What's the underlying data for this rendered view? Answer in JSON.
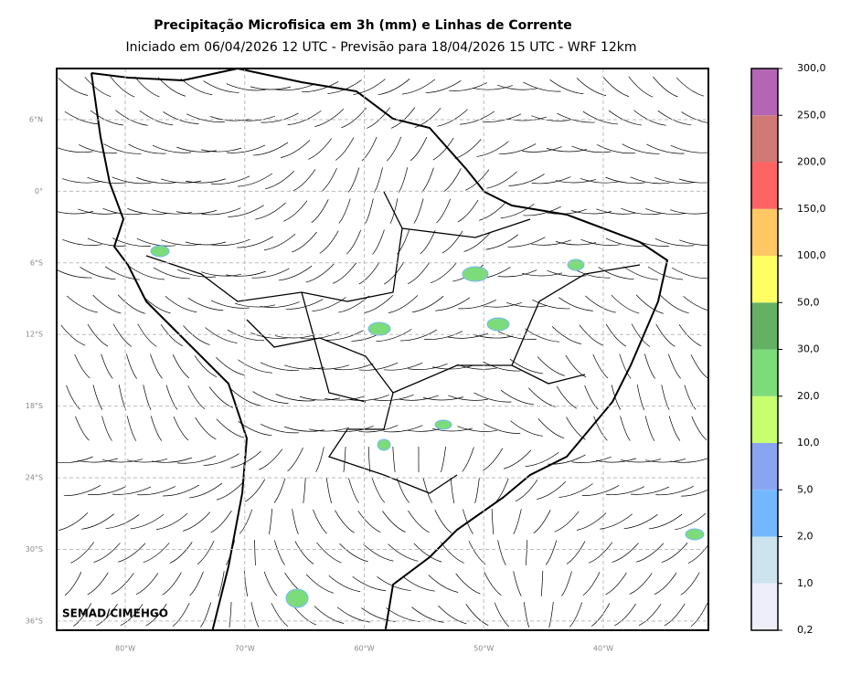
{
  "map": {
    "title": "Precipitação Microfisica em 3h (mm) e Linhas de Corrente",
    "subtitle": "Iniciado em 06/04/2026 12 UTC - Previsão para 18/04/2026 15 UTC - WRF 12km",
    "credit": "SEMAD/CIMEHGO",
    "xlim": [
      -85.74,
      -31.2
    ],
    "ylim": [
      -36.77,
      10.28
    ],
    "xticks": [
      {
        "value": -80,
        "label": "80°W"
      },
      {
        "value": -70,
        "label": "70°W"
      },
      {
        "value": -60,
        "label": "60°W"
      },
      {
        "value": -50,
        "label": "50°W"
      },
      {
        "value": -40,
        "label": "40°W"
      }
    ],
    "yticks": [
      {
        "value": 6,
        "label": "6°N"
      },
      {
        "value": 0,
        "label": "0°"
      },
      {
        "value": -6,
        "label": "6°S"
      },
      {
        "value": -12,
        "label": "12°S"
      },
      {
        "value": -18,
        "label": "18°S"
      },
      {
        "value": -24,
        "label": "24°S"
      },
      {
        "value": -30,
        "label": "30°S"
      },
      {
        "value": -36,
        "label": "36°S"
      }
    ],
    "grid": true,
    "colorbar": {
      "levels": [
        {
          "value": 0.2,
          "label": "0,2"
        },
        {
          "value": 1,
          "label": "1,0"
        },
        {
          "value": 2,
          "label": "2,0"
        },
        {
          "value": 5,
          "label": "5,0"
        },
        {
          "value": 10,
          "label": "10,0"
        },
        {
          "value": 20,
          "label": "20,0"
        },
        {
          "value": 30,
          "label": "30,0"
        },
        {
          "value": 50,
          "label": "50,0"
        },
        {
          "value": 100,
          "label": "100,0"
        },
        {
          "value": 150,
          "label": "150,0"
        },
        {
          "value": 200,
          "label": "200,0"
        },
        {
          "value": 250,
          "label": "250,0"
        },
        {
          "value": 300,
          "label": "300,0"
        }
      ],
      "colors": [
        "#eeeefa",
        "#cde4ee",
        "#73b8ff",
        "#8aa5ef",
        "#c8ff6e",
        "#7ddc7a",
        "#64b164",
        "#ffff64",
        "#ffc864",
        "#ff6464",
        "#d07a78",
        "#b466b4"
      ]
    }
  }
}
